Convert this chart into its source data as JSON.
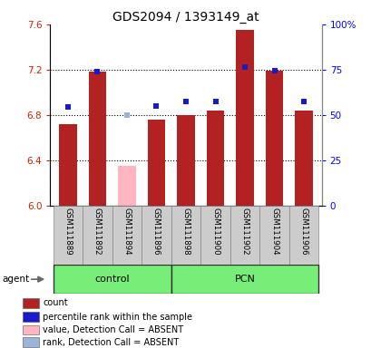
{
  "title": "GDS2094 / 1393149_at",
  "samples": [
    "GSM111889",
    "GSM111892",
    "GSM111894",
    "GSM111896",
    "GSM111898",
    "GSM111900",
    "GSM111902",
    "GSM111904",
    "GSM111906"
  ],
  "bar_values": [
    6.72,
    7.18,
    null,
    6.76,
    6.8,
    6.84,
    7.55,
    7.19,
    6.84
  ],
  "bar_absent_values": [
    null,
    null,
    6.35,
    null,
    null,
    null,
    null,
    null,
    null
  ],
  "dot_values": [
    6.87,
    7.18,
    null,
    6.88,
    6.92,
    6.92,
    7.22,
    7.19,
    6.92
  ],
  "dot_absent_values": [
    null,
    null,
    6.8,
    null,
    null,
    null,
    null,
    null,
    null
  ],
  "bar_color": "#b22222",
  "bar_absent_color": "#ffb6c1",
  "dot_color": "#1a1acd",
  "dot_absent_color": "#9bb5d8",
  "ylim_left": [
    6.0,
    7.6
  ],
  "ylim_right": [
    0,
    100
  ],
  "yticks_left": [
    6.0,
    6.4,
    6.8,
    7.2,
    7.6
  ],
  "yticks_right": [
    0,
    25,
    50,
    75,
    100
  ],
  "ytick_right_labels": [
    "0",
    "25",
    "50",
    "75",
    "100%"
  ],
  "groups": [
    {
      "label": "control",
      "indices": [
        0,
        1,
        2,
        3
      ],
      "color": "#77ee77"
    },
    {
      "label": "PCN",
      "indices": [
        4,
        5,
        6,
        7,
        8
      ],
      "color": "#77ee77"
    }
  ],
  "agent_label": "agent",
  "legend_items": [
    {
      "color": "#b22222",
      "label": "count"
    },
    {
      "color": "#1a1acd",
      "label": "percentile rank within the sample"
    },
    {
      "color": "#ffb6c1",
      "label": "value, Detection Call = ABSENT"
    },
    {
      "color": "#9bb5d8",
      "label": "rank, Detection Call = ABSENT"
    }
  ],
  "sample_bg_color": "#cccccc",
  "plot_bg_color": "#ffffff",
  "fig_bg_color": "#ffffff"
}
